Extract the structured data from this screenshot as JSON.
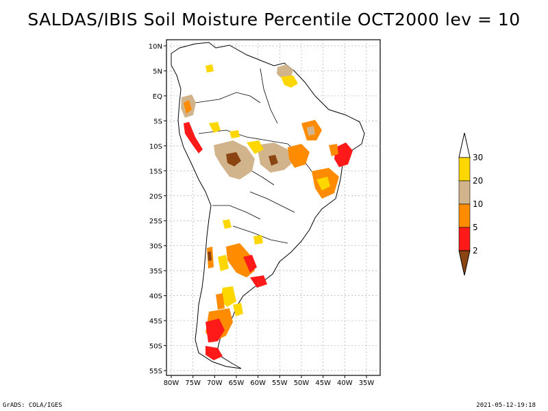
{
  "title": "SALDAS/IBIS Soil Moisture Percentile OCT2000 lev = 10",
  "map": {
    "lon_ticks": [
      "80W",
      "75W",
      "70W",
      "65W",
      "60W",
      "55W",
      "50W",
      "45W",
      "40W",
      "35W"
    ],
    "lat_ticks": [
      "10N",
      "5N",
      "EQ",
      "5S",
      "10S",
      "15S",
      "20S",
      "25S",
      "30S",
      "35S",
      "40S",
      "45S",
      "50S",
      "55S"
    ]
  },
  "colorbar": {
    "levels": [
      "2",
      "5",
      "10",
      "20",
      "30"
    ],
    "colors": [
      "#8b4513",
      "#ff1a1a",
      "#ff8c00",
      "#d2b48c",
      "#ffd700",
      "#ffffff"
    ]
  },
  "footer": {
    "left": "GrADS: COLA/IGES",
    "right": "2021-05-12-19:18"
  }
}
